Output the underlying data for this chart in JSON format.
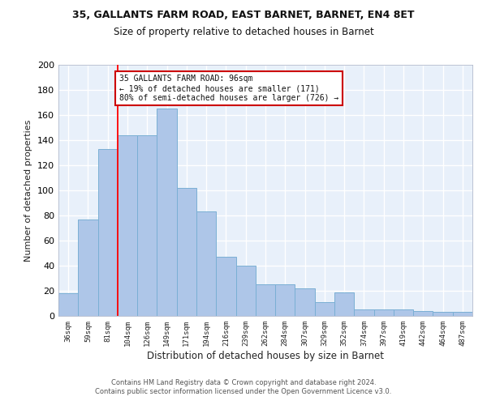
{
  "title1": "35, GALLANTS FARM ROAD, EAST BARNET, BARNET, EN4 8ET",
  "title2": "Size of property relative to detached houses in Barnet",
  "xlabel": "Distribution of detached houses by size in Barnet",
  "ylabel": "Number of detached properties",
  "categories": [
    "36sqm",
    "59sqm",
    "81sqm",
    "104sqm",
    "126sqm",
    "149sqm",
    "171sqm",
    "194sqm",
    "216sqm",
    "239sqm",
    "262sqm",
    "284sqm",
    "307sqm",
    "329sqm",
    "352sqm",
    "374sqm",
    "397sqm",
    "419sqm",
    "442sqm",
    "464sqm",
    "487sqm"
  ],
  "values": [
    18,
    77,
    133,
    144,
    144,
    165,
    102,
    83,
    47,
    40,
    25,
    25,
    22,
    11,
    19,
    5,
    5,
    5,
    4,
    3,
    3
  ],
  "bar_color": "#aec6e8",
  "bar_edge_color": "#7aafd4",
  "bg_color": "#e8f0fa",
  "grid_color": "#ffffff",
  "redline_x": 2.5,
  "annotation_text": "35 GALLANTS FARM ROAD: 96sqm\n← 19% of detached houses are smaller (171)\n80% of semi-detached houses are larger (726) →",
  "annotation_box_color": "#ffffff",
  "annotation_box_edge": "#cc0000",
  "footer1": "Contains HM Land Registry data © Crown copyright and database right 2024.",
  "footer2": "Contains public sector information licensed under the Open Government Licence v3.0.",
  "ylim": [
    0,
    200
  ],
  "yticks": [
    0,
    20,
    40,
    60,
    80,
    100,
    120,
    140,
    160,
    180,
    200
  ]
}
